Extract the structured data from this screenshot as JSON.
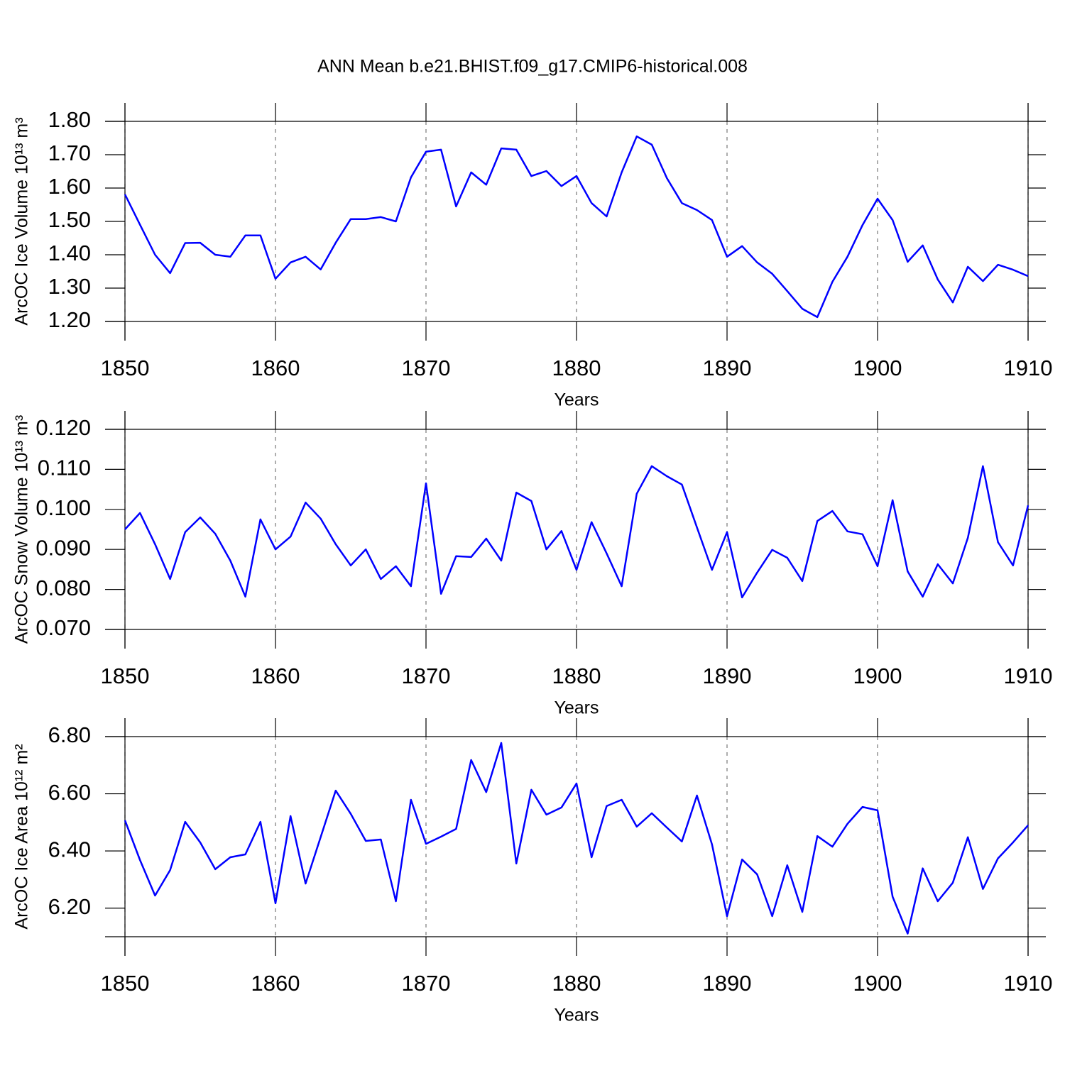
{
  "title": "ANN Mean b.e21.BHIST.f09_g17.CMIP6-historical.008",
  "chart_data": [
    {
      "type": "line",
      "y_label": "ArcOC Ice Volume 10¹³ m³",
      "x_label": "Years",
      "color": "#0000ff",
      "grid": "x",
      "x": [
        1850,
        1851,
        1852,
        1853,
        1854,
        1855,
        1856,
        1857,
        1858,
        1859,
        1860,
        1861,
        1862,
        1863,
        1864,
        1865,
        1866,
        1867,
        1868,
        1869,
        1870,
        1871,
        1872,
        1873,
        1874,
        1875,
        1876,
        1877,
        1878,
        1879,
        1880,
        1881,
        1882,
        1883,
        1884,
        1885,
        1886,
        1887,
        1888,
        1889,
        1890,
        1891,
        1892,
        1893,
        1894,
        1895,
        1896,
        1897,
        1898,
        1899,
        1900,
        1901,
        1902,
        1903,
        1904,
        1905,
        1906,
        1907,
        1908,
        1909,
        1910
      ],
      "values": [
        1.581,
        1.49,
        1.4,
        1.345,
        1.435,
        1.436,
        1.4,
        1.394,
        1.458,
        1.458,
        1.328,
        1.377,
        1.394,
        1.356,
        1.436,
        1.507,
        1.507,
        1.513,
        1.5,
        1.632,
        1.709,
        1.715,
        1.545,
        1.647,
        1.61,
        1.719,
        1.715,
        1.636,
        1.651,
        1.606,
        1.636,
        1.555,
        1.515,
        1.647,
        1.755,
        1.73,
        1.63,
        1.555,
        1.534,
        1.504,
        1.394,
        1.426,
        1.377,
        1.343,
        1.291,
        1.238,
        1.213,
        1.319,
        1.394,
        1.489,
        1.568,
        1.504,
        1.379,
        1.428,
        1.326,
        1.257,
        1.364,
        1.321,
        1.37,
        1.355,
        1.336
      ],
      "xlim": [
        1850,
        1910
      ],
      "xticks": [
        1850,
        1860,
        1870,
        1880,
        1890,
        1900,
        1910
      ],
      "ylim": [
        1.2,
        1.8
      ],
      "yticks": [
        {
          "value": 1.2,
          "label": "1.20"
        },
        {
          "value": 1.3,
          "label": "1.30"
        },
        {
          "value": 1.4,
          "label": "1.40"
        },
        {
          "value": 1.5,
          "label": "1.50"
        },
        {
          "value": 1.6,
          "label": "1.60"
        },
        {
          "value": 1.7,
          "label": "1.70"
        },
        {
          "value": 1.8,
          "label": "1.80"
        }
      ]
    },
    {
      "type": "line",
      "y_label": "ArcOC Snow Volume 10¹³ m³",
      "x_label": "Years",
      "color": "#0000ff",
      "grid": "x",
      "x": [
        1850,
        1851,
        1852,
        1853,
        1854,
        1855,
        1856,
        1857,
        1858,
        1859,
        1860,
        1861,
        1862,
        1863,
        1864,
        1865,
        1866,
        1867,
        1868,
        1869,
        1870,
        1871,
        1872,
        1873,
        1874,
        1875,
        1876,
        1877,
        1878,
        1879,
        1880,
        1881,
        1882,
        1883,
        1884,
        1885,
        1886,
        1887,
        1888,
        1889,
        1890,
        1891,
        1892,
        1893,
        1894,
        1895,
        1896,
        1897,
        1898,
        1899,
        1900,
        1901,
        1902,
        1903,
        1904,
        1905,
        1906,
        1907,
        1908,
        1909,
        1910
      ],
      "values": [
        0.095,
        0.0991,
        0.0913,
        0.0826,
        0.0943,
        0.098,
        0.0939,
        0.0872,
        0.0782,
        0.0975,
        0.09,
        0.0932,
        0.1017,
        0.0977,
        0.0913,
        0.086,
        0.09,
        0.0826,
        0.0858,
        0.0808,
        0.1065,
        0.0789,
        0.0883,
        0.0881,
        0.0927,
        0.0872,
        0.1042,
        0.1021,
        0.09,
        0.0946,
        0.0849,
        0.0968,
        0.089,
        0.0808,
        0.1039,
        0.1108,
        0.1083,
        0.1062,
        0.0955,
        0.0849,
        0.0943,
        0.078,
        0.0842,
        0.0899,
        0.0879,
        0.0821,
        0.0971,
        0.0996,
        0.0945,
        0.0938,
        0.0858,
        0.1023,
        0.0845,
        0.0782,
        0.0863,
        0.0815,
        0.0929,
        0.1108,
        0.0918,
        0.086,
        0.101
      ],
      "xlim": [
        1850,
        1910
      ],
      "xticks": [
        1850,
        1860,
        1870,
        1880,
        1890,
        1900,
        1910
      ],
      "ylim": [
        0.07,
        0.12
      ],
      "yticks": [
        {
          "value": 0.07,
          "label": "0.070"
        },
        {
          "value": 0.08,
          "label": "0.080"
        },
        {
          "value": 0.09,
          "label": "0.090"
        },
        {
          "value": 0.1,
          "label": "0.100"
        },
        {
          "value": 0.11,
          "label": "0.110"
        },
        {
          "value": 0.12,
          "label": "0.120"
        }
      ]
    },
    {
      "type": "line",
      "y_label": "ArcOC Ice Area 10¹² m²",
      "x_label": "Years",
      "color": "#0000ff",
      "grid": "x",
      "x": [
        1850,
        1851,
        1852,
        1853,
        1854,
        1855,
        1856,
        1857,
        1858,
        1859,
        1860,
        1861,
        1862,
        1863,
        1864,
        1865,
        1866,
        1867,
        1868,
        1869,
        1870,
        1871,
        1872,
        1873,
        1874,
        1875,
        1876,
        1877,
        1878,
        1879,
        1880,
        1881,
        1882,
        1883,
        1884,
        1885,
        1886,
        1887,
        1888,
        1889,
        1890,
        1891,
        1892,
        1893,
        1894,
        1895,
        1896,
        1897,
        1898,
        1899,
        1900,
        1901,
        1902,
        1903,
        1904,
        1905,
        1906,
        1907,
        1908,
        1909,
        1910
      ],
      "values": [
        6.507,
        6.368,
        6.244,
        6.333,
        6.502,
        6.43,
        6.336,
        6.378,
        6.388,
        6.502,
        6.217,
        6.522,
        6.286,
        6.448,
        6.611,
        6.53,
        6.435,
        6.44,
        6.224,
        6.579,
        6.425,
        6.45,
        6.477,
        6.718,
        6.606,
        6.778,
        6.356,
        6.614,
        6.527,
        6.552,
        6.636,
        6.378,
        6.557,
        6.579,
        6.485,
        6.532,
        6.482,
        6.433,
        6.594,
        6.423,
        6.172,
        6.37,
        6.318,
        6.172,
        6.35,
        6.187,
        6.452,
        6.415,
        6.495,
        6.554,
        6.542,
        6.24,
        6.111,
        6.339,
        6.224,
        6.289,
        6.448,
        6.267,
        6.374,
        6.43,
        6.49
      ],
      "xlim": [
        1850,
        1910
      ],
      "xticks": [
        1850,
        1860,
        1870,
        1880,
        1890,
        1900,
        1910
      ],
      "ylim": [
        6.1,
        6.8
      ],
      "yticks": [
        {
          "value": 6.2,
          "label": "6.20"
        },
        {
          "value": 6.4,
          "label": "6.40"
        },
        {
          "value": 6.6,
          "label": "6.60"
        },
        {
          "value": 6.8,
          "label": "6.80"
        }
      ]
    }
  ]
}
